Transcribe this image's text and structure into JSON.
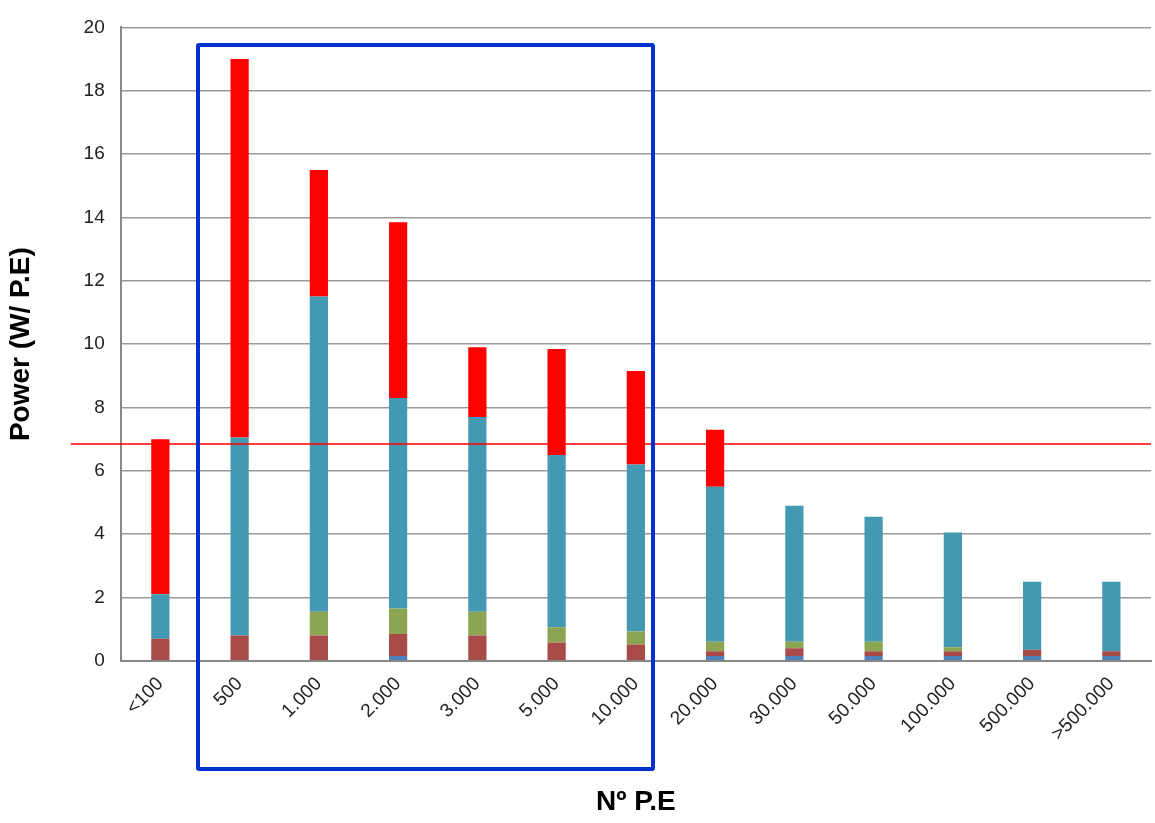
{
  "chart_data": {
    "type": "bar",
    "stacked": true,
    "xlabel": "Nº P.E",
    "ylabel": "Power (W/ P.E)",
    "categories": [
      "<100",
      "500",
      "1.000",
      "2.000",
      "3.000",
      "5.000",
      "10.000",
      "20.000",
      "30.000",
      "50.000",
      "100.000",
      "500.000",
      ">500.000"
    ],
    "series": [
      {
        "color": "#4f81bd",
        "values": [
          0,
          0,
          0,
          0.15,
          0,
          0,
          0,
          0.15,
          0.15,
          0.15,
          0.15,
          0.15,
          0.15
        ]
      },
      {
        "color": "#a84a48",
        "values": [
          0.7,
          0.8,
          0.8,
          0.7,
          0.8,
          0.58,
          0.52,
          0.15,
          0.25,
          0.15,
          0.15,
          0.2,
          0.15
        ]
      },
      {
        "color": "#8ba552",
        "values": [
          0,
          0,
          0.75,
          0.8,
          0.75,
          0.48,
          0.41,
          0.3,
          0.2,
          0.3,
          0.13,
          0,
          0
        ]
      },
      {
        "color": "#4399b1",
        "values": [
          1.4,
          6.25,
          9.95,
          6.65,
          6.15,
          5.44,
          5.27,
          4.9,
          4.3,
          3.95,
          3.62,
          2.15,
          2.2
        ]
      },
      {
        "color": "#ff0000",
        "values": [
          4.9,
          11.95,
          4.0,
          5.55,
          2.2,
          3.35,
          2.95,
          1.8,
          0,
          0,
          0,
          0,
          0
        ]
      }
    ],
    "ylim": [
      0,
      20
    ],
    "yticks": [
      0,
      2,
      4,
      6,
      8,
      10,
      12,
      14,
      16,
      18,
      20
    ],
    "grid": "y",
    "legend": false,
    "ref_lines": [
      {
        "axis": "y",
        "value": 6.85,
        "color": "#ff0000"
      }
    ]
  }
}
